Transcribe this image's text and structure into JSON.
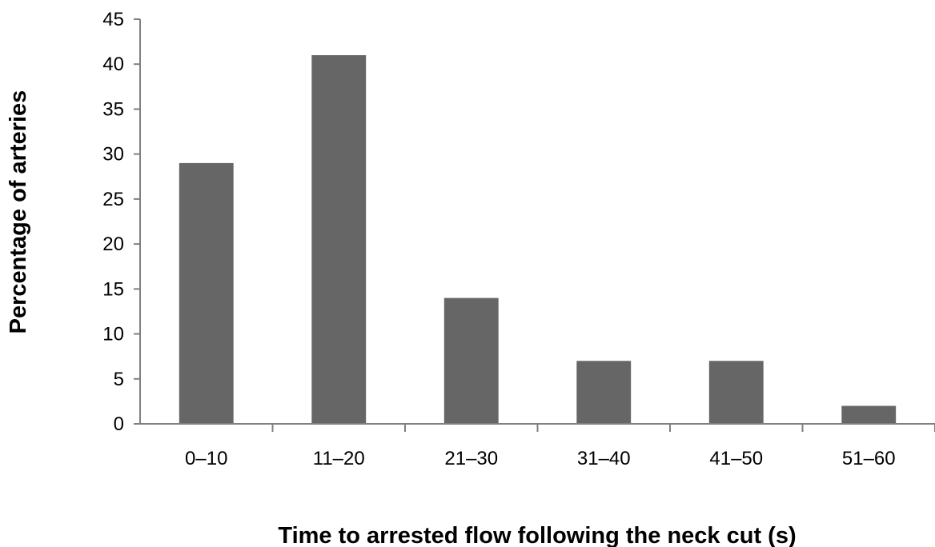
{
  "chart_data": {
    "type": "bar",
    "title": "",
    "xlabel": "Time to arrested flow following the neck cut (s)",
    "ylabel": "Percentage of arteries",
    "categories": [
      "0–10",
      "11–20",
      "21–30",
      "31–40",
      "41–50",
      "51–60"
    ],
    "values": [
      29,
      41,
      14,
      7,
      7,
      2
    ],
    "ylim": [
      0,
      45
    ],
    "yticks": [
      0,
      5,
      10,
      15,
      20,
      25,
      30,
      35,
      40,
      45
    ],
    "grid": false,
    "legend": "none",
    "bar_color": "#666666",
    "axis_color": "#808080"
  }
}
